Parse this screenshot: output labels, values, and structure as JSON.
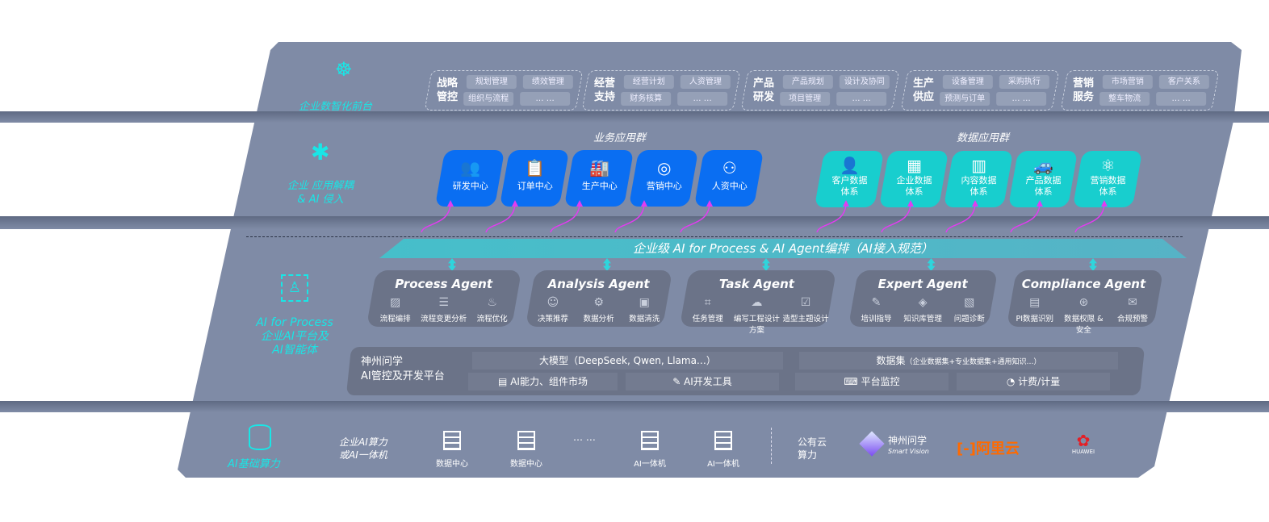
{
  "layers": {
    "frontend": "企业数智化前台",
    "apps": [
      "企业 应用解耦",
      "& AI 侵入"
    ],
    "ai": [
      "AI for Process",
      "企业AI平台及",
      "AI智能体"
    ],
    "infra": "AI基础算力"
  },
  "groups": [
    {
      "title": [
        "战略",
        "管控"
      ],
      "items": [
        "规划管理",
        "绩效管理",
        "组织与流程",
        "… …"
      ]
    },
    {
      "title": [
        "经营",
        "支持"
      ],
      "items": [
        "经营计划",
        "人资管理",
        "财务核算",
        "… …"
      ]
    },
    {
      "title": [
        "产品",
        "研发"
      ],
      "items": [
        "产品规划",
        "设计及协同",
        "项目管理",
        "… …"
      ]
    },
    {
      "title": [
        "生产",
        "供应"
      ],
      "items": [
        "设备管理",
        "采购执行",
        "预测与订单",
        "… …"
      ]
    },
    {
      "title": [
        "营销",
        "服务"
      ],
      "items": [
        "市场营销",
        "客户关系",
        "整车物流",
        "… …"
      ]
    }
  ],
  "business_apps": {
    "title": "业务应用群",
    "items": [
      "研发中心",
      "订单中心",
      "生产中心",
      "营销中心",
      "人资中心"
    ]
  },
  "data_apps": {
    "title": "数据应用群",
    "items": [
      [
        "客户数据",
        "体系"
      ],
      [
        "企业数据",
        "体系"
      ],
      [
        "内容数据",
        "体系"
      ],
      [
        "产品数据",
        "体系"
      ],
      [
        "营销数据",
        "体系"
      ]
    ]
  },
  "banner": "企业级 AI for Process & AI Agent编排（AI接入规范）",
  "agents": [
    {
      "name": "Process Agent",
      "items": [
        "流程编排",
        "流程变更分析",
        "流程优化"
      ]
    },
    {
      "name": "Analysis Agent",
      "items": [
        "决策推荐",
        "数据分析",
        "数据清洗"
      ]
    },
    {
      "name": "Task Agent",
      "items": [
        "任务管理",
        "编写工程设计方案",
        "造型主题设计"
      ]
    },
    {
      "name": "Expert Agent",
      "items": [
        "培训指导",
        "知识库管理",
        "问题诊断"
      ]
    },
    {
      "name": "Compliance Agent",
      "items": [
        "PI数据识别",
        "数据权限 & 安全",
        "合规预警"
      ]
    }
  ],
  "platform": {
    "title": [
      "神州问学",
      "AI管控及开发平台"
    ],
    "model": "大模型（DeepSeek, Qwen, Llama…）",
    "dataset": "数据集",
    "dataset_note": "（企业数据集+专业数据集+通用知识…）",
    "tools": [
      "AI能力、组件市场",
      "AI开发工具",
      "平台监控",
      "计费/计量"
    ]
  },
  "infra": {
    "private_label": [
      "企业AI算力",
      "或AI一体机"
    ],
    "nodes": [
      "数据中心",
      "数据中心",
      "AI一体机",
      "AI一体机"
    ],
    "ellipsis": "… …",
    "public_label": [
      "公有云",
      "算力"
    ],
    "vendors": [
      {
        "name": "神州问学",
        "sub": "Smart Vision"
      },
      {
        "name": "阿里云",
        "color": "#ff6a00"
      },
      {
        "name": "HUAWEI",
        "color": "#e41f26"
      }
    ]
  }
}
